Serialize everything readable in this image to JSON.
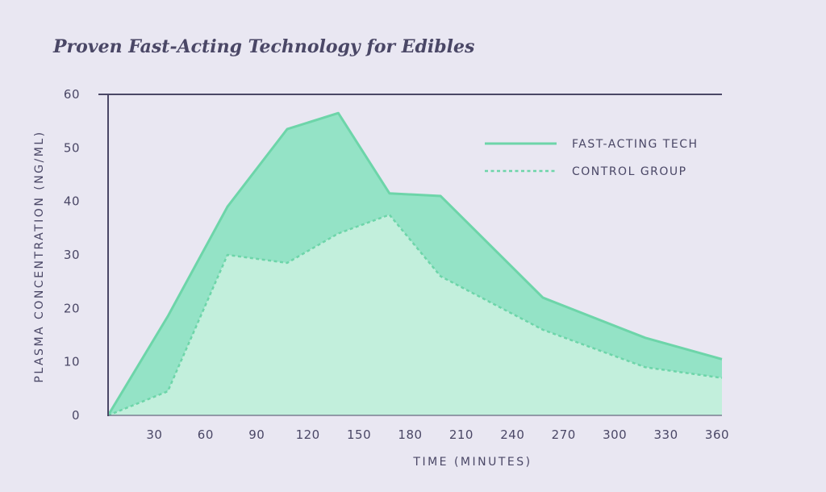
{
  "chart_data": {
    "type": "area",
    "title": "Proven Fast-Acting Technology for Edibles",
    "xlabel": "TIME (MINUTES)",
    "ylabel": "PLASMA CONCENTRATION (NG/ML)",
    "xlim": [
      0,
      360
    ],
    "ylim": [
      0,
      60
    ],
    "x_ticks": [
      30,
      60,
      90,
      120,
      150,
      180,
      210,
      240,
      270,
      300,
      330,
      360
    ],
    "x_tick_labels": [
      "30",
      "60",
      "90",
      "120",
      "150",
      "180",
      "210",
      "240",
      "270",
      "300",
      "330",
      "360"
    ],
    "y_ticks": [
      0,
      10,
      20,
      30,
      40,
      50,
      60
    ],
    "y_tick_labels": [
      "0",
      "10",
      "20",
      "30",
      "40",
      "50",
      "60"
    ],
    "series": [
      {
        "name": "FAST-ACTING TECH",
        "style": "solid",
        "color": "#6dd5a9",
        "fill": "#94e3c6",
        "x": [
          0,
          35,
          70,
          105,
          135,
          165,
          195,
          255,
          315,
          360
        ],
        "y": [
          0,
          18.5,
          39,
          53.5,
          56.5,
          41.5,
          41,
          22,
          14.5,
          10.5
        ]
      },
      {
        "name": "CONTROL GROUP",
        "style": "dotted",
        "color": "#6dd5a9",
        "fill": "#c2efdc",
        "x": [
          0,
          35,
          70,
          105,
          135,
          165,
          195,
          255,
          315,
          360
        ],
        "y": [
          0,
          4.5,
          30,
          28.5,
          34,
          37.5,
          26,
          16,
          9,
          7
        ]
      }
    ],
    "legend_position": "top-right"
  }
}
